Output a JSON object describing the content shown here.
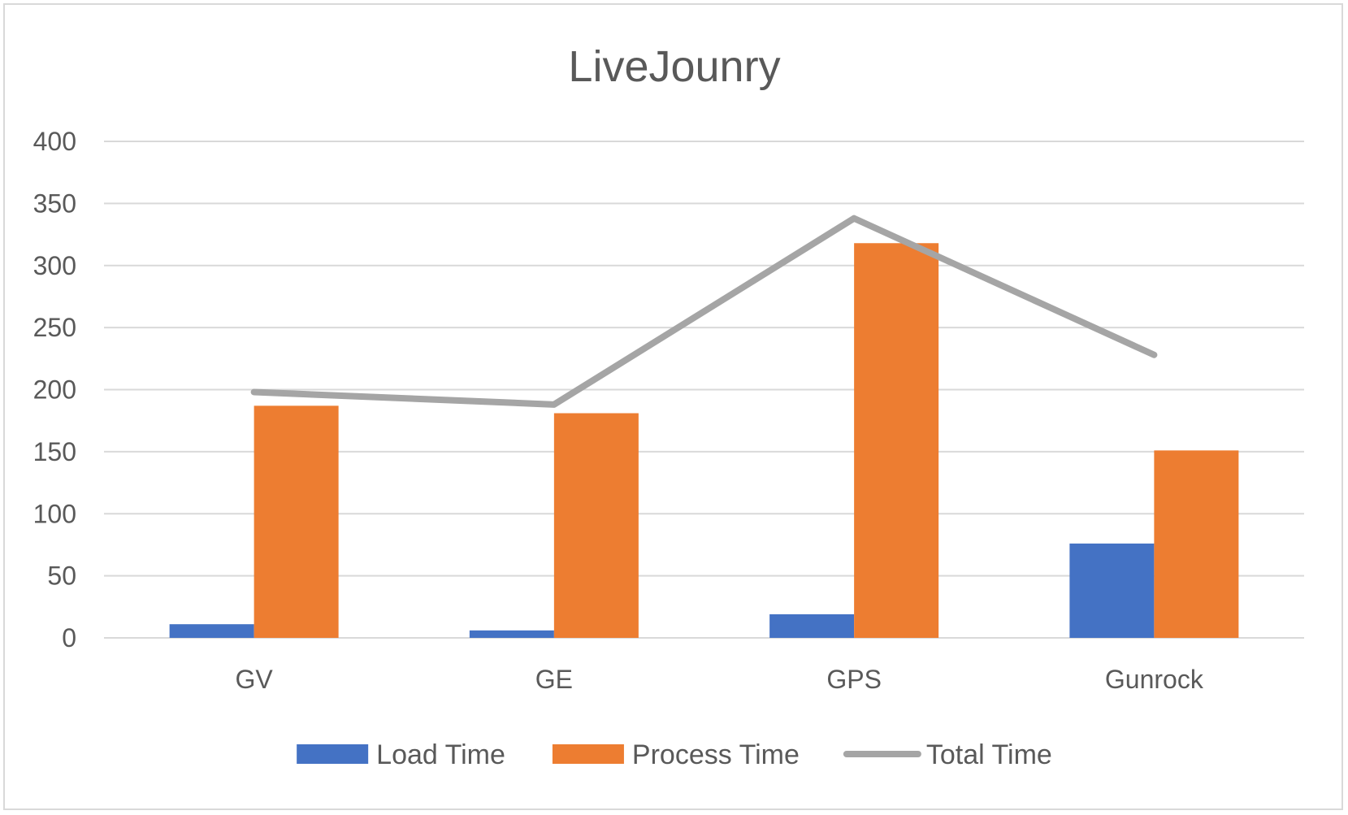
{
  "chart_data": {
    "type": "bar",
    "title": "LiveJounry",
    "xlabel": "",
    "ylabel": "",
    "categories": [
      "GV",
      "GE",
      "GPS",
      "Gunrock"
    ],
    "ylim": [
      0,
      400
    ],
    "yticks": [
      0,
      50,
      100,
      150,
      200,
      250,
      300,
      350,
      400
    ],
    "grid": true,
    "legend_position": "bottom",
    "series": [
      {
        "name": "Load Time",
        "type": "bar",
        "color": "#4472C4",
        "values": [
          11,
          6,
          19,
          76
        ]
      },
      {
        "name": "Process Time",
        "type": "bar",
        "color": "#ED7D31",
        "values": [
          187,
          181,
          318,
          151
        ]
      },
      {
        "name": "Total Time",
        "type": "line",
        "color": "#A5A5A5",
        "values": [
          198,
          188,
          338,
          228
        ]
      }
    ]
  }
}
